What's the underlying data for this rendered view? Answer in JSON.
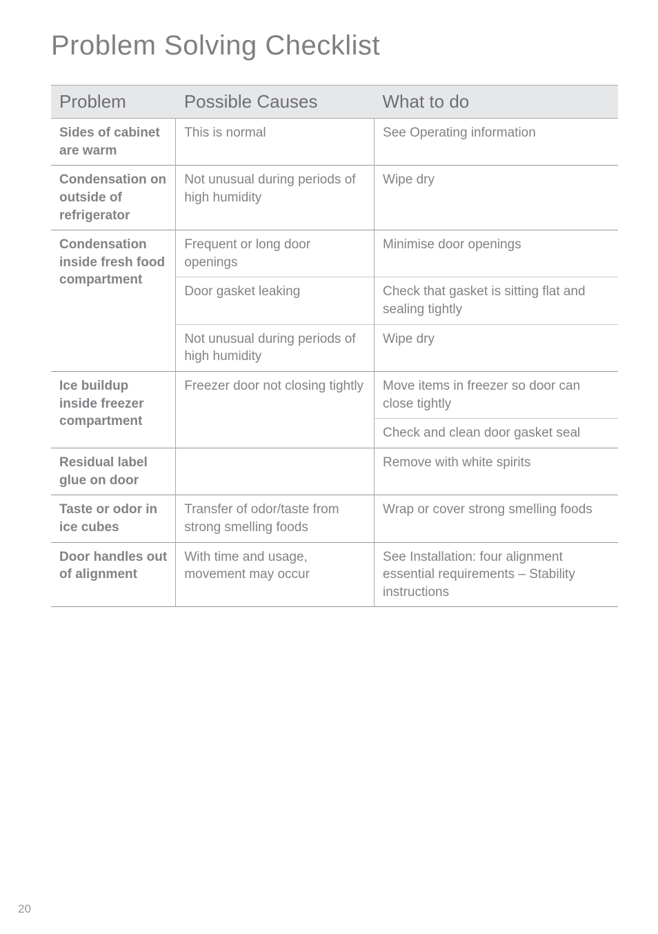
{
  "title": "Problem Solving Checklist",
  "page_number": "20",
  "headers": {
    "problem": "Problem",
    "causes": "Possible Causes",
    "actions": "What to do"
  },
  "groups": [
    {
      "problem": "Sides of cabinet are warm",
      "rows": [
        {
          "cause": "This is normal",
          "action": "See Operating information"
        }
      ]
    },
    {
      "problem": "Condensation on outside of refrigerator",
      "rows": [
        {
          "cause": "Not unusual during periods of high humidity",
          "action": "Wipe dry"
        }
      ]
    },
    {
      "problem": "Condensation inside fresh food compartment",
      "rows": [
        {
          "cause": "Frequent or long door openings",
          "action": "Minimise door openings"
        },
        {
          "cause": "Door gasket leaking",
          "action": "Check that gasket is sitting flat and sealing tightly"
        },
        {
          "cause": "Not unusual during periods of high humidity",
          "action": "Wipe dry"
        }
      ]
    },
    {
      "problem": "Ice buildup inside freezer compartment",
      "cause_span": "Freezer door not closing tightly",
      "rows": [
        {
          "action": "Move items in freezer so door can close tightly"
        },
        {
          "action": "Check and clean door gasket seal"
        }
      ]
    },
    {
      "problem": "Residual label glue on door",
      "rows": [
        {
          "cause": "",
          "action": "Remove with white spirits"
        }
      ]
    },
    {
      "problem": "Taste or odor in ice cubes",
      "rows": [
        {
          "cause": "Transfer of odor/taste from strong smelling foods",
          "action": "Wrap or cover strong smelling foods"
        }
      ]
    },
    {
      "problem": "Door handles out of alignment",
      "rows": [
        {
          "cause": "With time and usage, movement may occur",
          "action": "See Installation: four alignment essential requirements  – Stability instructions"
        }
      ]
    }
  ]
}
